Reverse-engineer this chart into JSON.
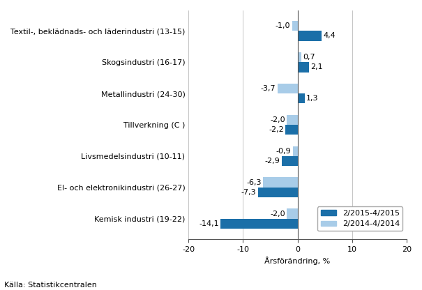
{
  "categories": [
    "Textil-, beklädnads- och läderindustri (13-15)",
    "Skogsindustri (16-17)",
    "Metallindustri (24-30)",
    "Tillverkning (C )",
    "Livsmedelsindustri (10-11)",
    "El- och elektronikindustri (26-27)",
    "Kemisk industri (19-22)"
  ],
  "series1_label": "2/2015-4/2015",
  "series2_label": "2/2014-4/2014",
  "series1_color": "#1B6FA8",
  "series2_color": "#A8CCE8",
  "series1_values": [
    4.4,
    2.1,
    1.3,
    -2.2,
    -2.9,
    -7.3,
    -14.1
  ],
  "series2_values": [
    -1.0,
    0.7,
    -3.7,
    -2.0,
    -0.9,
    -6.3,
    -2.0
  ],
  "series1_labels": [
    "4,4",
    "2,1",
    "1,3",
    "-2,2",
    "-2,9",
    "-7,3",
    "-14,1"
  ],
  "series2_labels": [
    "-1,0",
    "0,7",
    "-3,7",
    "-2,0",
    "-0,9",
    "-6,3",
    "-2,0"
  ],
  "xlim": [
    -20,
    20
  ],
  "xticks": [
    -20,
    -10,
    0,
    10,
    20
  ],
  "xlabel": "Årsförändring, %",
  "source": "Källa: Statistikcentralen",
  "background_color": "#ffffff",
  "grid_color": "#bbbbbb",
  "bar_height": 0.32,
  "tick_fontsize": 8.0,
  "label_fontsize": 8.0,
  "legend_fontsize": 8.0,
  "source_fontsize": 8.0
}
